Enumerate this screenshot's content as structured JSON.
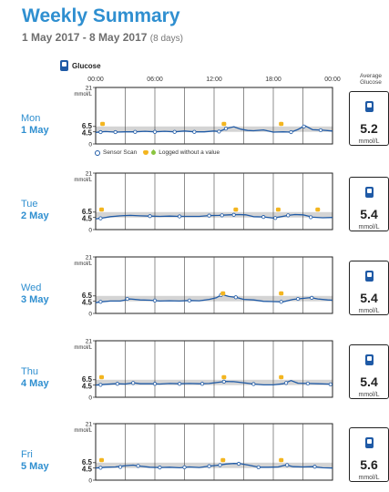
{
  "header": {
    "title": "Weekly Summary",
    "date_range": "1 May 2017 - 8 May 2017",
    "days": "(8 days)"
  },
  "legend": {
    "device_label": "Glucose",
    "scan_label": "Sensor Scan",
    "logged_label": "Logged without a value"
  },
  "average_header": "Average Glucose",
  "colors": {
    "title": "#2f8fd0",
    "line": "#1f5aa6",
    "target_band": "#d4d4d4",
    "marker": "#f3b51f"
  },
  "chart_data": {
    "type": "line",
    "x_unit": "hours",
    "xlim": [
      0,
      24
    ],
    "x_ticks": [
      "00:00",
      "06:00",
      "12:00",
      "18:00",
      "00:00"
    ],
    "ylim": [
      0,
      21
    ],
    "y_tick_labels": [
      "21",
      "6.5",
      "4.5",
      "0"
    ],
    "y_unit": "mmol/L",
    "target_range": [
      4.5,
      6.5
    ],
    "days": [
      {
        "weekday": "Mon",
        "date": "1 May",
        "average": "5.2",
        "avg_unit": "mmol/L",
        "line": [
          [
            0,
            4.3
          ],
          [
            1,
            4.6
          ],
          [
            2,
            4.4
          ],
          [
            3,
            4.5
          ],
          [
            4,
            4.5
          ],
          [
            5,
            4.7
          ],
          [
            6,
            4.5
          ],
          [
            7,
            4.7
          ],
          [
            8,
            4.5
          ],
          [
            9,
            4.8
          ],
          [
            10,
            4.5
          ],
          [
            11,
            4.5
          ],
          [
            12,
            4.8
          ],
          [
            12.5,
            4.6
          ],
          [
            13.3,
            5.8
          ],
          [
            14,
            6.4
          ],
          [
            14.7,
            5.5
          ],
          [
            15.4,
            5.0
          ],
          [
            16,
            4.9
          ],
          [
            17,
            5.2
          ],
          [
            18,
            4.4
          ],
          [
            19,
            4.5
          ],
          [
            19.8,
            4.4
          ],
          [
            20.5,
            5.4
          ],
          [
            21.2,
            6.8
          ],
          [
            22,
            5.3
          ],
          [
            23,
            5.1
          ],
          [
            24,
            4.8
          ]
        ],
        "scans": [
          [
            0.5,
            4.4
          ],
          [
            2,
            4.4
          ],
          [
            4,
            4.5
          ],
          [
            6,
            4.5
          ],
          [
            8,
            4.5
          ],
          [
            10,
            4.5
          ],
          [
            12.5,
            4.6
          ],
          [
            13.2,
            5.7
          ],
          [
            19.8,
            4.4
          ],
          [
            21.1,
            6.5
          ],
          [
            22.8,
            5.1
          ]
        ],
        "logged": [
          0.7,
          13,
          18.8
        ]
      },
      {
        "weekday": "Tue",
        "date": "2 May",
        "average": "5.4",
        "avg_unit": "mmol/L",
        "line": [
          [
            0,
            4.0
          ],
          [
            0.5,
            4.2
          ],
          [
            1.5,
            4.8
          ],
          [
            2.5,
            5.1
          ],
          [
            3.5,
            5.3
          ],
          [
            4.5,
            5.1
          ],
          [
            5.5,
            5.0
          ],
          [
            6.5,
            4.9
          ],
          [
            7.5,
            5.0
          ],
          [
            8.5,
            4.9
          ],
          [
            9.5,
            4.9
          ],
          [
            10.5,
            4.9
          ],
          [
            11.5,
            5.2
          ],
          [
            12.5,
            5.3
          ],
          [
            13.5,
            5.5
          ],
          [
            14.5,
            5.6
          ],
          [
            15.2,
            5.5
          ],
          [
            16,
            4.8
          ],
          [
            17,
            4.7
          ],
          [
            18,
            4.3
          ],
          [
            18.8,
            4.8
          ],
          [
            19.5,
            5.3
          ],
          [
            20.2,
            5.6
          ],
          [
            21,
            5.5
          ],
          [
            22,
            4.6
          ],
          [
            23,
            4.4
          ],
          [
            24,
            4.5
          ]
        ],
        "scans": [
          [
            0.5,
            4.2
          ],
          [
            5.5,
            5.0
          ],
          [
            8.5,
            4.9
          ],
          [
            11.5,
            5.2
          ],
          [
            12.8,
            5.3
          ],
          [
            14,
            5.5
          ],
          [
            17,
            4.7
          ],
          [
            18.2,
            4.3
          ],
          [
            19.5,
            5.3
          ],
          [
            21.8,
            4.6
          ]
        ],
        "logged": [
          0.6,
          14.2,
          18.5,
          22.5
        ]
      },
      {
        "weekday": "Wed",
        "date": "3 May",
        "average": "5.4",
        "avg_unit": "mmol/L",
        "line": [
          [
            0,
            4.0
          ],
          [
            0.5,
            4.3
          ],
          [
            1.5,
            4.6
          ],
          [
            2.5,
            4.6
          ],
          [
            3.5,
            5.4
          ],
          [
            4.5,
            5.0
          ],
          [
            5.5,
            4.9
          ],
          [
            6.5,
            4.6
          ],
          [
            7.5,
            4.7
          ],
          [
            8.5,
            4.6
          ],
          [
            9.5,
            4.8
          ],
          [
            10.5,
            4.7
          ],
          [
            11.5,
            5.2
          ],
          [
            12.2,
            5.8
          ],
          [
            12.8,
            7.0
          ],
          [
            13.5,
            6.3
          ],
          [
            14.2,
            6.0
          ],
          [
            15,
            5.2
          ],
          [
            16,
            5.0
          ],
          [
            17,
            4.5
          ],
          [
            18,
            4.4
          ],
          [
            19,
            4.3
          ],
          [
            20,
            5.2
          ],
          [
            21,
            5.6
          ],
          [
            21.8,
            5.9
          ],
          [
            22.5,
            5.4
          ],
          [
            23.5,
            5.0
          ],
          [
            24,
            4.9
          ]
        ],
        "scans": [
          [
            0.5,
            4.3
          ],
          [
            3.2,
            5.4
          ],
          [
            6,
            4.8
          ],
          [
            9.5,
            4.8
          ],
          [
            12.7,
            6.8
          ],
          [
            14.2,
            6.0
          ],
          [
            18.8,
            4.3
          ],
          [
            20.5,
            5.4
          ],
          [
            21.9,
            5.8
          ]
        ],
        "logged": [
          12.9,
          18.8
        ]
      },
      {
        "weekday": "Thu",
        "date": "4 May",
        "average": "5.4",
        "avg_unit": "mmol/L",
        "line": [
          [
            0,
            4.5
          ],
          [
            1,
            4.8
          ],
          [
            2,
            5.0
          ],
          [
            3,
            4.9
          ],
          [
            3.8,
            5.4
          ],
          [
            4.5,
            5.0
          ],
          [
            5.5,
            5.0
          ],
          [
            6.5,
            4.9
          ],
          [
            7.5,
            5.1
          ],
          [
            8.5,
            5.0
          ],
          [
            9.5,
            5.1
          ],
          [
            10.5,
            5.0
          ],
          [
            11.5,
            5.1
          ],
          [
            12.5,
            5.6
          ],
          [
            13.2,
            5.9
          ],
          [
            14,
            5.8
          ],
          [
            15,
            5.4
          ],
          [
            16,
            4.9
          ],
          [
            17,
            4.6
          ],
          [
            18,
            4.6
          ],
          [
            19,
            5.0
          ],
          [
            19.8,
            6.2
          ],
          [
            20.5,
            5.2
          ],
          [
            21.5,
            5.1
          ],
          [
            22.5,
            5.0
          ],
          [
            23.5,
            4.9
          ],
          [
            24,
            4.8
          ]
        ],
        "scans": [
          [
            0.5,
            4.6
          ],
          [
            2.2,
            5.0
          ],
          [
            3.8,
            5.3
          ],
          [
            6,
            5.0
          ],
          [
            8.5,
            5.0
          ],
          [
            10.8,
            5.0
          ],
          [
            13,
            5.8
          ],
          [
            16,
            4.9
          ],
          [
            19.3,
            5.3
          ],
          [
            21.5,
            5.1
          ],
          [
            23.8,
            4.8
          ]
        ],
        "logged": [
          0.6,
          13,
          18.8
        ]
      },
      {
        "weekday": "Fri",
        "date": "5 May",
        "average": "5.6",
        "avg_unit": "mmol/L",
        "line": [
          [
            0,
            4.5
          ],
          [
            1,
            4.8
          ],
          [
            2,
            4.9
          ],
          [
            3,
            5.4
          ],
          [
            3.8,
            5.6
          ],
          [
            4.5,
            5.2
          ],
          [
            5.5,
            4.8
          ],
          [
            6.5,
            4.7
          ],
          [
            7.5,
            4.8
          ],
          [
            8.5,
            4.6
          ],
          [
            9.5,
            4.9
          ],
          [
            10.5,
            4.7
          ],
          [
            11.5,
            5.2
          ],
          [
            12.5,
            5.6
          ],
          [
            13.2,
            6.0
          ],
          [
            14,
            6.2
          ],
          [
            14.7,
            6.1
          ],
          [
            15.5,
            5.6
          ],
          [
            16.5,
            4.8
          ],
          [
            17.5,
            4.8
          ],
          [
            18.5,
            4.9
          ],
          [
            19.3,
            5.7
          ],
          [
            20,
            5.0
          ],
          [
            21,
            4.9
          ],
          [
            22,
            5.0
          ],
          [
            23,
            4.6
          ],
          [
            24,
            4.5
          ]
        ],
        "scans": [
          [
            0.5,
            4.6
          ],
          [
            2.5,
            4.9
          ],
          [
            4.3,
            5.3
          ],
          [
            6.5,
            4.7
          ],
          [
            9,
            4.8
          ],
          [
            11.5,
            5.2
          ],
          [
            12.6,
            5.6
          ],
          [
            14.5,
            6.1
          ],
          [
            16.5,
            4.8
          ],
          [
            19.4,
            5.6
          ],
          [
            22.2,
            5.0
          ]
        ],
        "logged": [
          0.6,
          12.9,
          18.8
        ]
      }
    ]
  }
}
